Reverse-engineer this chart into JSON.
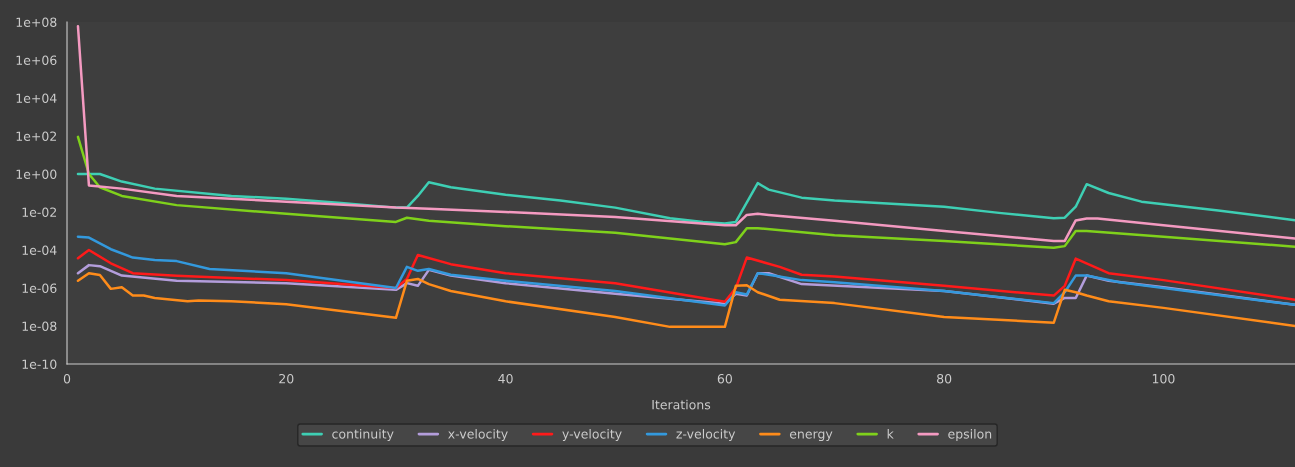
{
  "chart_data": {
    "type": "line",
    "xlabel": "Iterations",
    "log": "y",
    "xlim": [
      0,
      112
    ],
    "ylim": [
      1e-10,
      100000000.0
    ],
    "xticks": [
      0,
      20,
      40,
      60,
      80,
      100
    ],
    "yticks": [
      {
        "value": 1e-10,
        "label": "1e-10"
      },
      {
        "value": 1e-08,
        "label": "1e-08"
      },
      {
        "value": 1e-06,
        "label": "1e-06"
      },
      {
        "value": 0.0001,
        "label": "1e-04"
      },
      {
        "value": 0.01,
        "label": "1e-02"
      },
      {
        "value": 1,
        "label": "1e+00"
      },
      {
        "value": 100.0,
        "label": "1e+02"
      },
      {
        "value": 10000.0,
        "label": "1e+04"
      },
      {
        "value": 1000000.0,
        "label": "1e+06"
      },
      {
        "value": 100000000.0,
        "label": "1e+08"
      }
    ],
    "grid": false,
    "legend": "bottom",
    "marker": "none",
    "line_style": "solid",
    "series": [
      {
        "name": "continuity",
        "color": "#3ecfb4",
        "x": [
          1,
          3,
          5,
          8,
          15,
          20,
          25,
          30,
          31,
          32,
          33,
          35,
          40,
          45,
          50,
          55,
          58,
          60,
          61,
          63,
          64,
          67,
          70,
          80,
          85,
          90,
          91,
          92,
          93,
          95,
          98,
          105,
          112
        ],
        "values": [
          1,
          1,
          0.4,
          0.17,
          0.07,
          0.05,
          0.03,
          0.017,
          0.017,
          0.07,
          0.37,
          0.2,
          0.08,
          0.04,
          0.017,
          0.0047,
          0.003,
          0.0025,
          0.003,
          0.33,
          0.15,
          0.057,
          0.04,
          0.019,
          0.009,
          0.0047,
          0.005,
          0.019,
          0.29,
          0.1,
          0.035,
          0.012,
          0.0037
        ]
      },
      {
        "name": "x-velocity",
        "color": "#b39ddb",
        "x": [
          1,
          2,
          3,
          5,
          10,
          20,
          30,
          31,
          32,
          33,
          35,
          40,
          50,
          60,
          61,
          62,
          63,
          64,
          67,
          80,
          90,
          91,
          92,
          93,
          95,
          100,
          112
        ],
        "values": [
          6e-06,
          1.6e-05,
          1.4e-05,
          4.5e-06,
          2.4e-06,
          1.8e-06,
          8e-07,
          1.8e-06,
          1.3e-06,
          9e-06,
          4.5e-06,
          1.8e-06,
          5e-07,
          1.5e-07,
          5e-07,
          4e-07,
          6e-06,
          6e-06,
          1.6e-06,
          7e-07,
          1.5e-07,
          3e-07,
          3e-07,
          4.5e-06,
          2.4e-06,
          1.1e-06,
          1.3e-07
        ]
      },
      {
        "name": "y-velocity",
        "color": "#ff1a1a",
        "x": [
          1,
          2,
          4,
          6,
          10,
          20,
          30,
          31,
          32,
          35,
          40,
          50,
          60,
          61,
          62,
          65,
          67,
          70,
          80,
          90,
          91,
          92,
          95,
          100,
          112
        ],
        "values": [
          3.7e-05,
          0.0001,
          2e-05,
          6e-06,
          4.4e-06,
          2.6e-06,
          1e-06,
          3e-06,
          5.5e-05,
          1.8e-05,
          6e-06,
          1.8e-06,
          1.9e-07,
          1e-06,
          4e-05,
          1.3e-05,
          5e-06,
          4e-06,
          1.3e-06,
          4e-07,
          1.3e-06,
          3.5e-05,
          6e-06,
          2.6e-06,
          2.4e-07
        ]
      },
      {
        "name": "z-velocity",
        "color": "#3399dd",
        "x": [
          1,
          2,
          4,
          6,
          8,
          10,
          13,
          20,
          30,
          31,
          32,
          33,
          35,
          40,
          50,
          60,
          61,
          62,
          63,
          64,
          67,
          70,
          80,
          90,
          91,
          92,
          93,
          96,
          100,
          112
        ],
        "values": [
          0.0005,
          0.00045,
          0.00011,
          4e-05,
          3e-05,
          2.6e-05,
          1e-05,
          6e-06,
          1e-06,
          1.3e-05,
          8e-06,
          1e-05,
          5e-06,
          2.4e-06,
          7e-07,
          1.2e-07,
          6e-07,
          4.5e-07,
          6e-06,
          5e-06,
          2.6e-06,
          2e-06,
          7e-07,
          1.6e-07,
          6e-07,
          4.5e-06,
          4.5e-06,
          2e-06,
          1e-06,
          1.3e-07
        ]
      },
      {
        "name": "energy",
        "color": "#ff8c1a",
        "x": [
          1,
          2,
          3,
          4,
          5,
          6,
          7,
          8,
          11,
          12,
          15,
          20,
          30,
          31,
          32,
          33,
          35,
          40,
          50,
          55,
          60,
          61,
          62,
          63,
          65,
          70,
          80,
          90,
          91,
          92,
          93,
          95,
          100,
          112
        ],
        "values": [
          2.4e-06,
          6e-06,
          4.8e-06,
          9e-07,
          1.1e-06,
          4e-07,
          4e-07,
          3e-07,
          2e-07,
          2.2e-07,
          2e-07,
          1.4e-07,
          2.7e-08,
          2.4e-06,
          3e-06,
          1.6e-06,
          7e-07,
          2e-07,
          3e-08,
          9e-09,
          9e-09,
          1.3e-06,
          1.4e-06,
          6e-07,
          2.4e-07,
          1.6e-07,
          3e-08,
          1.5e-08,
          8e-07,
          6e-07,
          4e-07,
          2e-07,
          9e-08,
          1e-08
        ]
      },
      {
        "name": "k",
        "color": "#7fd11b",
        "x": [
          1,
          2,
          3,
          5,
          10,
          20,
          30,
          31,
          33,
          40,
          50,
          60,
          61,
          62,
          63,
          70,
          80,
          90,
          91,
          92,
          93,
          100,
          112
        ],
        "values": [
          90,
          1,
          0.2,
          0.07,
          0.023,
          0.008,
          0.003,
          0.005,
          0.0035,
          0.0018,
          0.0008,
          0.0002,
          0.00026,
          0.0014,
          0.0014,
          0.0006,
          0.0003,
          0.00013,
          0.00016,
          0.001,
          0.001,
          0.0005,
          0.00015
        ]
      },
      {
        "name": "epsilon",
        "color": "#f49ac1",
        "x": [
          1,
          2,
          5,
          10,
          20,
          30,
          33,
          40,
          50,
          60,
          61,
          62,
          63,
          64,
          70,
          80,
          90,
          91,
          92,
          93,
          94,
          100,
          112
        ],
        "values": [
          60000000.0,
          0.25,
          0.17,
          0.07,
          0.035,
          0.017,
          0.015,
          0.01,
          0.0054,
          0.002,
          0.002,
          0.007,
          0.008,
          0.007,
          0.0035,
          0.001,
          0.0003,
          0.0003,
          0.0036,
          0.0045,
          0.0045,
          0.002,
          0.0004
        ]
      }
    ]
  }
}
